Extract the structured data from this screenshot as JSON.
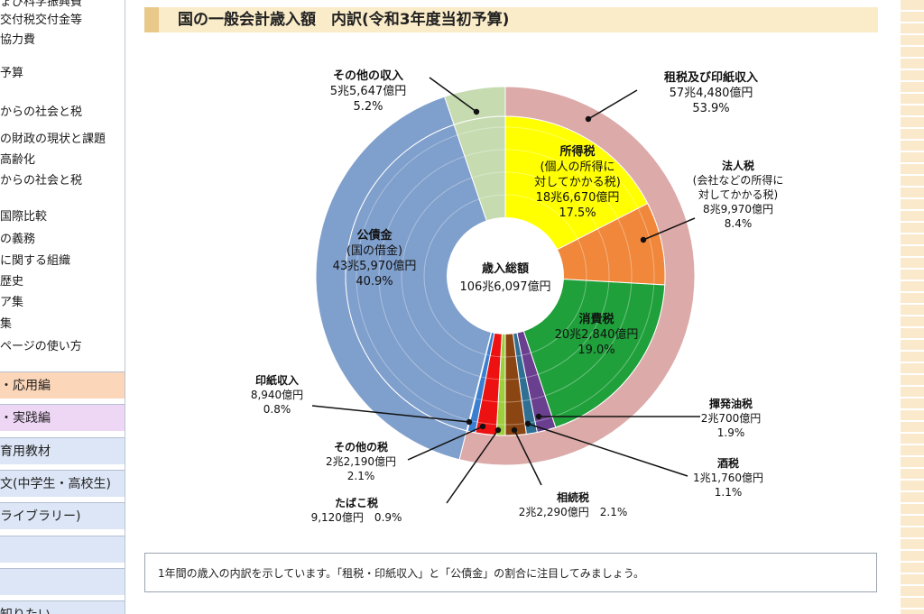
{
  "sidebar": {
    "links": [
      "ょび科学振興費",
      "交付税交付金等",
      "協力費",
      "予算",
      "からの社会と税",
      "の財政の現状と課題",
      "高齢化",
      "からの社会と税",
      "国際比較",
      "の義務",
      "に関する組織",
      "歴史",
      "ア集",
      "集",
      "ページの使い方"
    ],
    "bands": [
      {
        "label": "・応用編",
        "color": "#fcd6b8"
      },
      {
        "label": "・実践編",
        "color": "#eed6f5"
      },
      {
        "label": "育用教材",
        "color": "#dce6f6"
      },
      {
        "label": "文(中学生・高校生)",
        "color": "#dce6f6"
      },
      {
        "label": "ライブラリー)",
        "color": "#dce6f6"
      },
      {
        "label": "",
        "color": "#dce6f6"
      },
      {
        "label": "",
        "color": "#dce6f6"
      },
      {
        "label": "知りたい",
        "color": "#dce6f6"
      }
    ]
  },
  "page": {
    "title": "国の一般会計歳入額　内訳(令和3年度当初予算)",
    "caption": "1年間の歳入の内訳を示しています。「租税・印紙収入」と「公債金」の割合に注目してみましょう。"
  },
  "chart_data": {
    "type": "pie",
    "title": "国の一般会計歳入額　内訳(令和3年度当初予算)",
    "center_label": [
      "歳入総額",
      "106兆6,097億円"
    ],
    "outer": [
      {
        "name": "租税及び印紙収入",
        "amount": "57兆4,480億円",
        "percent": 53.9,
        "color": "#dcaaa9",
        "label_lines": [
          "租税及び印紙収入",
          "57兆4,480億円",
          "53.9%"
        ]
      },
      {
        "name": "公債金",
        "amount": "43兆5,970億円",
        "percent": 40.9,
        "color": "#7f9fcc",
        "label_lines": [
          "公債金",
          "(国の借金)",
          "43兆5,970億円",
          "40.9%"
        ]
      },
      {
        "name": "その他の収入",
        "amount": "5兆5,647億円",
        "percent": 5.2,
        "color": "#c6dbb0",
        "label_lines": [
          "その他の収入",
          "5兆5,647億円",
          "5.2%"
        ]
      }
    ],
    "inner": [
      {
        "name": "所得税",
        "amount": "18兆6,670億円",
        "percent": 17.5,
        "color": "#ffff00",
        "label_lines": [
          "所得税",
          "(個人の所得に",
          "対してかかる税)",
          "18兆6,670億円",
          "17.5%"
        ]
      },
      {
        "name": "法人税",
        "amount": "8兆9,970億円",
        "percent": 8.4,
        "color": "#f0873b",
        "label_lines": [
          "法人税",
          "(会社などの所得に",
          "対してかかる税)",
          "8兆9,970億円",
          "8.4%"
        ]
      },
      {
        "name": "消費税",
        "amount": "20兆2,840億円",
        "percent": 19.0,
        "color": "#1fa03b",
        "label_lines": [
          "消費税",
          "20兆2,840億円",
          "19.0%"
        ]
      },
      {
        "name": "揮発油税",
        "amount": "2兆700億円",
        "percent": 1.9,
        "color": "#6b3f90",
        "label_lines": [
          "揮発油税",
          "2兆700億円",
          "1.9%"
        ]
      },
      {
        "name": "酒税",
        "amount": "1兆1,760億円",
        "percent": 1.1,
        "color": "#2f6f94",
        "label_lines": [
          "酒税",
          "1兆1,760億円",
          "1.1%"
        ]
      },
      {
        "name": "相続税",
        "amount": "2兆2,290億円",
        "percent": 2.1,
        "color": "#8b4513",
        "label_lines": [
          "相続税",
          "2兆2,290億円　2.1%"
        ]
      },
      {
        "name": "たばこ税",
        "amount": "9,120億円",
        "percent": 0.9,
        "color": "#9fce3d",
        "label_lines": [
          "たばこ税",
          "9,120億円　0.9%"
        ]
      },
      {
        "name": "その他の税",
        "amount": "2兆2,190億円",
        "percent": 2.1,
        "color": "#ee1111",
        "label_lines": [
          "その他の税",
          "2兆2,190億円",
          "2.1%"
        ]
      },
      {
        "name": "印紙収入",
        "amount": "8,940億円",
        "percent": 0.8,
        "color": "#3a7fd0",
        "label_lines": [
          "印紙収入",
          "8,940億円",
          "0.8%"
        ]
      }
    ]
  }
}
